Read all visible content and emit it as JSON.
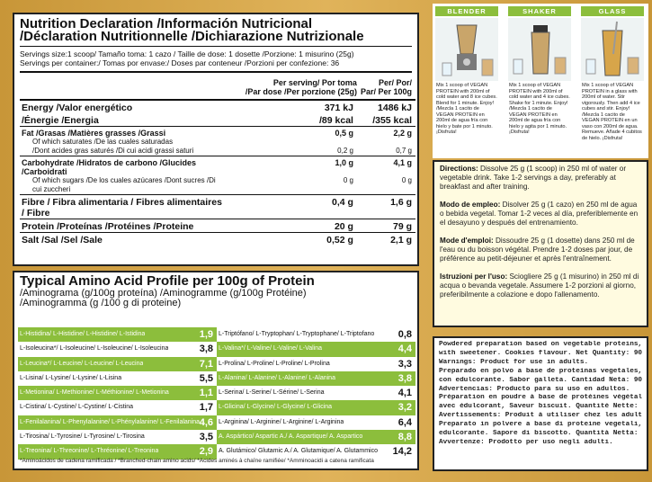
{
  "nutrition": {
    "title_line1": "Nutrition Declaration /Información Nutricional",
    "title_line2": "/Déclaration Nutritionnelle /Dichiarazione Nutrizionale",
    "serving_size": "Servings size:1 scoop/ Tamaño toma: 1 cazo / Taille de dose: 1 dosette /Porzione: 1 misurino (25g)",
    "servings_per_container": "Servings per container:/ Tomas por envase:/ Doses par conteneur /Porzioni per confezione: 36",
    "header_col1": "Per serving/ Por toma\n/Par dose /Per porzione (25g)",
    "header_col2": "Per/ Por/\nPar/ Per 100g",
    "rows": [
      {
        "label": "Energy /Valor energético",
        "v1": "371 kJ",
        "v2": "1486 kJ",
        "style": "big"
      },
      {
        "label": "/Énergie /Energia",
        "v1": "/89 kcal",
        "v2": "/355 kcal",
        "style": "big"
      },
      {
        "label": "Fat /Grasas /Matières grasses /Grassi",
        "v1": "0,5 g",
        "v2": "2,2 g",
        "style": "bold"
      },
      {
        "label": "Of which saturates /De las cuales saturadas",
        "v1": "",
        "v2": "",
        "style": "sub"
      },
      {
        "label": "/Dont acides gras saturés /Di cui acidi grassi saturi",
        "v1": "0,2 g",
        "v2": "0,7 g",
        "style": "sub"
      },
      {
        "label": "Carbohydrate /Hidratos de carbono /Glucides /Carboidrati",
        "v1": "1,0 g",
        "v2": "4,1 g",
        "style": "bold"
      },
      {
        "label": "Of which sugars /De los cuales azúcares /Dont sucres /Di cui zuccheri",
        "v1": "0 g",
        "v2": "0 g",
        "style": "sub"
      },
      {
        "label": "Fibre / Fibra alimentaria / Fibres alimentaires / Fibre",
        "v1": "0,4 g",
        "v2": "1,6 g",
        "style": "big"
      },
      {
        "label": "Protein /Proteínas /Protéines /Proteine",
        "v1": "20 g",
        "v2": "79 g",
        "style": "big"
      },
      {
        "label": "Salt /Sal /Sel /Sale",
        "v1": "0,52 g",
        "v2": "2,1 g",
        "style": "big"
      }
    ]
  },
  "amino": {
    "title": "Typical Amino Acid Profile per 100g of Protein",
    "subtitle1": "/Aminograma (g/100g proteína) /Aminogramme (g/100g Protéine)",
    "subtitle2": "/Aminogramma (g /100 g di proteine)",
    "left": [
      {
        "name": "L-Histidina/ L-Histidine/ L-Histidine/ L-Istidina",
        "value": "1,9",
        "green": true
      },
      {
        "name": "L-Isoleucina*/ L-Isoleucine/ L-Isoleucine/ L-Isoleucina",
        "value": "3,8",
        "green": false
      },
      {
        "name": "L-Leucina*/ L-Leucine/ L-Leucine/ L-Leucina",
        "value": "7,1",
        "green": true
      },
      {
        "name": "L-Lisina/ L-Lysine/ L-Lysine/ L-Lisina",
        "value": "5,5",
        "green": false
      },
      {
        "name": "L-Metionina/ L-Methionine/ L-Méthionine/ L-Metionina",
        "value": "1,1",
        "green": true
      },
      {
        "name": "L-Cistina/ L-Cystine/ L-Cystine/ L-Cistina",
        "value": "1,7",
        "green": false
      },
      {
        "name": "L-Fenilalanina/ L-Phenylalanine/ L-Phénylalanine/ L-Fenilalanina",
        "value": "4,6",
        "green": true
      },
      {
        "name": "L-Tirosina/ L-Tyrosine/ L-Tyrosine/ L-Tirosina",
        "value": "3,5",
        "green": false
      },
      {
        "name": "L-Treonina/ L-Threonine/ L-Thréonine/ L-Treonina",
        "value": "2,9",
        "green": true
      }
    ],
    "right": [
      {
        "name": "L-Triptófano/ L-Tryptophan/ L-Tryptophane/ L-Triptofano",
        "value": "0,8",
        "green": false
      },
      {
        "name": "L-Valina*/ L-Valine/ L-Valine/ L-Valina",
        "value": "4,4",
        "green": true
      },
      {
        "name": "L-Prolina/ L-Proline/ L-Proline/ L-Prolina",
        "value": "3,3",
        "green": false
      },
      {
        "name": "L-Alanina/ L-Alanine/ L-Alanine/ L-Alanina",
        "value": "3,8",
        "green": true
      },
      {
        "name": "L-Serina/ L-Serine/ L-Sérine/ L-Serina",
        "value": "4,1",
        "green": false
      },
      {
        "name": "L-Glicina/ L-Glycine/ L-Glycine/ L-Glicina",
        "value": "3,2",
        "green": true
      },
      {
        "name": "L-Arginina/ L-Arginine/ L-Arginine/ L-Arginina",
        "value": "6,4",
        "green": false
      },
      {
        "name": "A. Aspártico/ Aspartic A./ A. Aspartique/ A. Aspartico",
        "value": "8,8",
        "green": true
      },
      {
        "name": "A. Glutámico/ Glutamic A./ A. Glutamique/ A. Glutammico",
        "value": "14,2",
        "green": false
      }
    ],
    "footnote": "*Aminoácidos de cadena ramificada / *Branched-chain amino acids/ *Acides aminés à chaîne ramifiée/ *Amminoacidi a catena ramificata"
  },
  "preparation": [
    {
      "header": "BLENDER",
      "text": "Mix 1 scoop of VEGAN PROTEIN with 200ml of cold water and 8 ice cubes. Blend for 1 minute. Enjoy! /Mezcla 1 cacito de VEGAN PROTEIN en 200ml de agua fría con hielo y bate por 1 minuto. ¡Disfruta!"
    },
    {
      "header": "SHAKER",
      "text": "Mix 1 scoop of VEGAN PROTEIN with 200ml of cold water and 4 ice cubes. Shake for 1 minute. Enjoy! /Mezcla 1 cacito de VEGAN PROTEIN en 200ml de agua fría con hielo y agita por 1 minuto. ¡Disfruta!"
    },
    {
      "header": "GLASS",
      "text": "Mix 1 scoop of VEGAN PROTEIN in a glass with 200ml of water. Stir vigorously. Then add 4 ice cubes and stir. Enjoy! /Mezcla 1 cacito de VEGAN PROTEIN en un vaso con 200ml de agua. Remueve. Añade 4 cubitos de hielo. ¡Disfruta!"
    }
  ],
  "directions": [
    {
      "label": "Directions:",
      "text": " Dissolve 25 g (1 scoop) in 250 ml of water or vegetable drink. Take 1-2 servings a day, preferably at breakfast and after training."
    },
    {
      "label": "Modo de empleo:",
      "text": " Disolver 25 g (1 cazo) en 250 ml de agua o bebida vegetal. Tomar 1-2 veces al día, preferiblemente en el desayuno y después del entrenamiento."
    },
    {
      "label": "Mode d'emploi:",
      "text": " Dissoudre 25 g (1 dosette) dans 250 ml de l'eau ou du boisson végétal. Prendre 1-2 doses par jour, de préférence au petit-déjeuner et après l'entraînement."
    },
    {
      "label": "Istruzioni per l'uso:",
      "text": " Sciogliere 25 g (1 misurino) in 250 ml di acqua o bevanda vegetale. Assumere 1-2 porzioni al giorno, preferibilmente a colazione e dopo l'allenamento."
    }
  ],
  "warnings": [
    "Powdered preparation based on vegetable proteins,",
    "with sweetener. Cookies flavour. Net Quantity: 900g.",
    "Warnings: Product for use in adults.",
    "Preparado en polvo a base de proteínas vegetales,",
    "con edulcorante. Sabor galleta. Cantidad Neta: 900g.",
    "Advertencias: Producto para su uso en adultos.",
    "Préparation en poudre à base de protéines végétales,",
    "avec édulcorant, Saveur biscuit. Quantité Nette: 900g.",
    "Avertissements: Produit à utiliser chez les adultes.",
    "Preparato in polvere a base di proteine vegetali, con",
    "edulcorante. Sapore di biscotto. Quantità Netta: 900g.",
    "Avvertenze: Prodotto per uso negli adulti."
  ],
  "colors": {
    "accent": "#8cbe3c",
    "background": "#d9a84a"
  }
}
